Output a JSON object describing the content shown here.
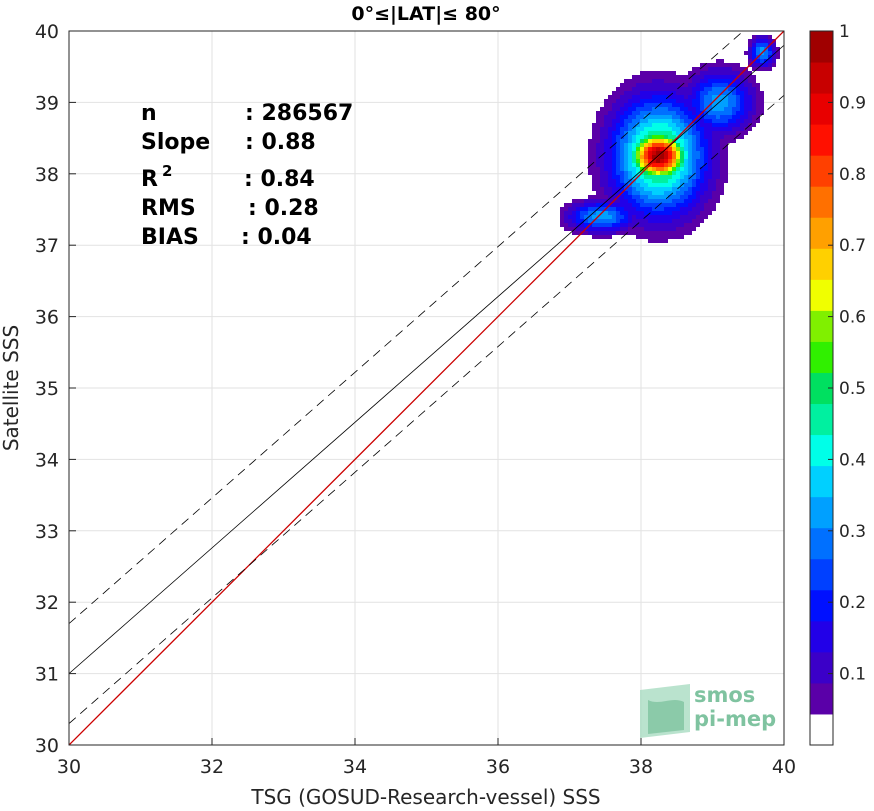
{
  "chart_data": {
    "type": "heatmap",
    "title": "0°≤|LAT|≤ 80°",
    "xlabel": "TSG (GOSUD-Research-vessel) SSS",
    "ylabel": "Satellite SSS",
    "xlim": [
      30,
      40
    ],
    "ylim": [
      30,
      40
    ],
    "x_ticks": [
      "30",
      "32",
      "34",
      "36",
      "38",
      "40"
    ],
    "y_ticks": [
      "30",
      "31",
      "32",
      "33",
      "34",
      "35",
      "36",
      "37",
      "38",
      "39",
      "40"
    ],
    "grid": true,
    "stats": {
      "n_label": "n",
      "n_value": ": 286567",
      "slope_label": "Slope",
      "slope_value": ": 0.88",
      "r2_label": "R",
      "r2_sup": "2",
      "r2_value": ": 0.84",
      "rms_label": "RMS",
      "rms_value": ": 0.28",
      "bias_label": "BIAS",
      "bias_value": ": 0.04"
    },
    "identity_line": {
      "x": [
        30,
        40
      ],
      "y": [
        30,
        40
      ],
      "color": "#cc0000"
    },
    "regression_line": {
      "slope": 0.88,
      "intercept": 4.6,
      "x": [
        30,
        40
      ],
      "color": "#000000"
    },
    "confidence_bounds": {
      "offset": 0.7,
      "style": "dashed"
    },
    "density_peak": {
      "x": 38.25,
      "y": 38.25,
      "value": 1.0
    },
    "density_blobs": [
      {
        "cx": 38.25,
        "cy": 38.25,
        "sx": 0.45,
        "sy": 0.55,
        "level": 0.05
      },
      {
        "cx": 37.45,
        "cy": 37.4,
        "sx": 0.33,
        "sy": 0.15,
        "level": 0.05
      },
      {
        "cx": 39.1,
        "cy": 39.0,
        "sx": 0.32,
        "sy": 0.3,
        "level": 0.05
      },
      {
        "cx": 39.7,
        "cy": 39.7,
        "sx": 0.12,
        "sy": 0.14,
        "level": 0.05
      }
    ],
    "density_levels": [
      0.05,
      0.12,
      0.2,
      0.28,
      0.36,
      0.44,
      0.52,
      0.6,
      0.68,
      0.76,
      0.84,
      0.92
    ],
    "colorbar": {
      "ticks": [
        "0.1",
        "0.2",
        "0.3",
        "0.4",
        "0.5",
        "0.6",
        "0.7",
        "0.8",
        "0.9",
        "1"
      ],
      "tick_values": [
        0.1,
        0.2,
        0.3,
        0.4,
        0.5,
        0.6,
        0.7,
        0.8,
        0.9,
        1.0
      ],
      "range": [
        0,
        1
      ],
      "colors": [
        "#ffffff",
        "#5a00a8",
        "#3b00c8",
        "#2200e8",
        "#0010ff",
        "#0040ff",
        "#0070ff",
        "#00a0ff",
        "#00d0ff",
        "#00ffe8",
        "#00f0a0",
        "#00e060",
        "#30f000",
        "#80f000",
        "#f0ff00",
        "#ffd000",
        "#ffa000",
        "#ff7000",
        "#ff4000",
        "#ff1000",
        "#e80000",
        "#c80000",
        "#a00000"
      ]
    }
  },
  "logo": {
    "line1": "smos",
    "line2": "pi-mep"
  }
}
